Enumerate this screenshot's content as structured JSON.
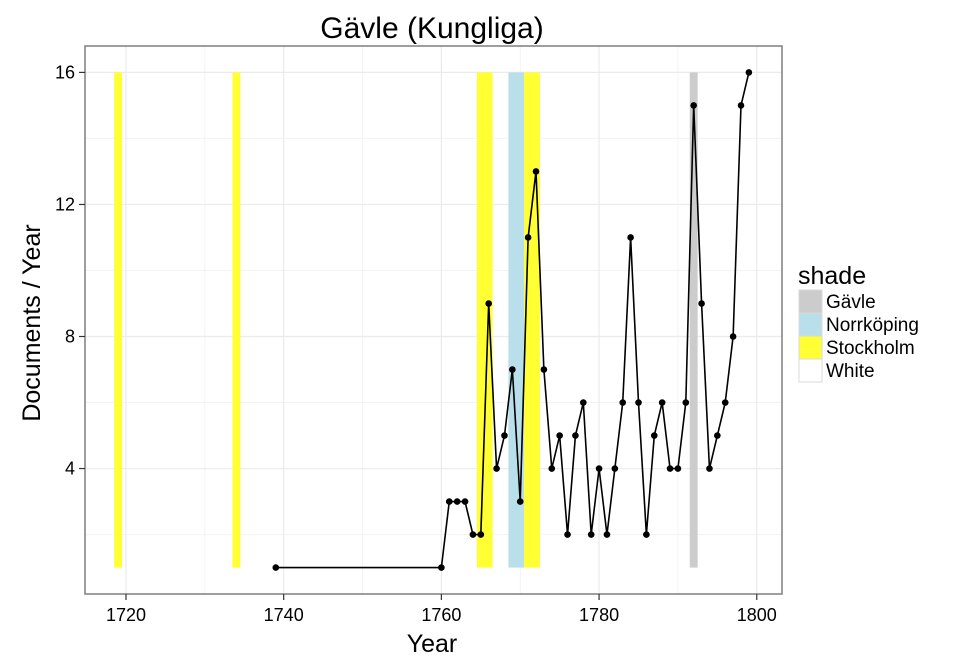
{
  "chart_data": {
    "type": "line",
    "title": "Gävle (Kungliga)",
    "xlabel": "Year",
    "ylabel": "Documents / Year",
    "xlim": [
      1714.8,
      1803.2
    ],
    "ylim": [
      0.2,
      16.8
    ],
    "x_ticks": [
      1720,
      1740,
      1760,
      1780,
      1800
    ],
    "y_ticks": [
      4,
      8,
      12,
      16
    ],
    "grid": true,
    "legend": {
      "title": "shade",
      "placement": "right",
      "entries": [
        {
          "label": "Gävle",
          "color": "#cccccc"
        },
        {
          "label": "Norrköping",
          "color": "#b9dfea"
        },
        {
          "label": "Stockholm",
          "color": "#ffff33"
        },
        {
          "label": "White",
          "color": "#ffffff"
        }
      ]
    },
    "shade_bands": [
      {
        "start": 1718.5,
        "end": 1719.5,
        "shade": "Stockholm"
      },
      {
        "start": 1733.5,
        "end": 1734.5,
        "shade": "Stockholm"
      },
      {
        "start": 1764.5,
        "end": 1766.5,
        "shade": "Stockholm"
      },
      {
        "start": 1768.5,
        "end": 1770.5,
        "shade": "Norrköping"
      },
      {
        "start": 1770.5,
        "end": 1772.5,
        "shade": "Stockholm"
      },
      {
        "start": 1791.5,
        "end": 1792.5,
        "shade": "Gävle"
      }
    ],
    "shade_range": [
      1,
      16
    ],
    "series": [
      {
        "x": [
          1739,
          1760,
          1761,
          1762,
          1763,
          1764,
          1765,
          1766,
          1767,
          1768,
          1769,
          1770,
          1771,
          1772,
          1773,
          1774,
          1775,
          1776,
          1777,
          1778,
          1779,
          1780,
          1781,
          1782,
          1783,
          1784,
          1785,
          1786,
          1787,
          1788,
          1789,
          1790,
          1791,
          1792,
          1793,
          1794,
          1795,
          1796,
          1797,
          1798,
          1799
        ],
        "values": [
          1,
          1,
          3,
          3,
          3,
          2,
          2,
          9,
          4,
          5,
          7,
          3,
          11,
          13,
          7,
          4,
          5,
          2,
          5,
          6,
          2,
          4,
          2,
          4,
          6,
          11,
          6,
          2,
          5,
          6,
          4,
          4,
          6,
          15,
          9,
          4,
          5,
          6,
          8,
          15,
          16
        ]
      }
    ]
  },
  "colors": {
    "line": "#000000",
    "panel_border": "#7f7f7f",
    "grid": "#ebebeb"
  }
}
